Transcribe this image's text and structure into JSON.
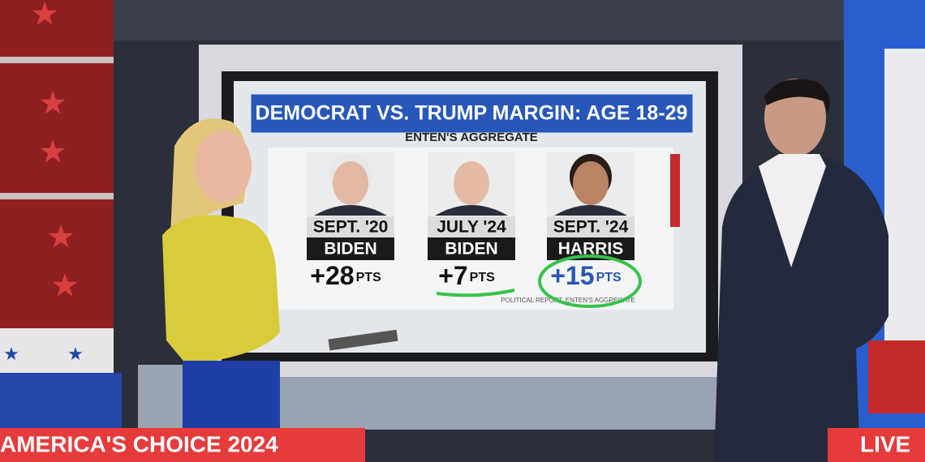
{
  "screen": {
    "title": "DEMOCRAT VS. TRUMP MARGIN: AGE 18-29",
    "subtitle": "ENTEN'S AGGREGATE",
    "columns": [
      {
        "date": "SEPT. '20",
        "candidate": "BIDEN",
        "margin": "+28",
        "unit": "PTS"
      },
      {
        "date": "JULY '24",
        "candidate": "BIDEN",
        "margin": "+7",
        "unit": "PTS"
      },
      {
        "date": "SEPT. '24",
        "candidate": "HARRIS",
        "margin": "+15",
        "unit": "PTS"
      }
    ],
    "source": "POLITICAL REPORT, ENTEN'S AGGREGATE"
  },
  "banner": {
    "left": "AMERICA'S CHOICE 2024",
    "right": "LIVE"
  }
}
